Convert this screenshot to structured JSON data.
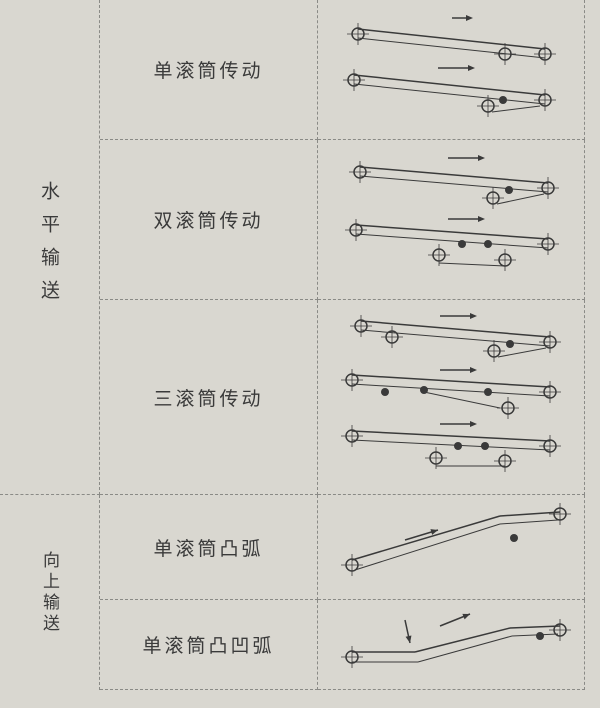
{
  "table": {
    "groups": [
      {
        "label": "水平输送",
        "rows": [
          "单滚筒传动",
          "双滚筒传动",
          "三滚筒传动"
        ]
      },
      {
        "label": "向上输送",
        "rows": [
          "单滚筒凸弧",
          "单滚筒凸凹弧"
        ]
      }
    ]
  },
  "colors": {
    "background": "#d9d7d0",
    "line": "#3a3a3a",
    "grid": "#8a8a86"
  }
}
